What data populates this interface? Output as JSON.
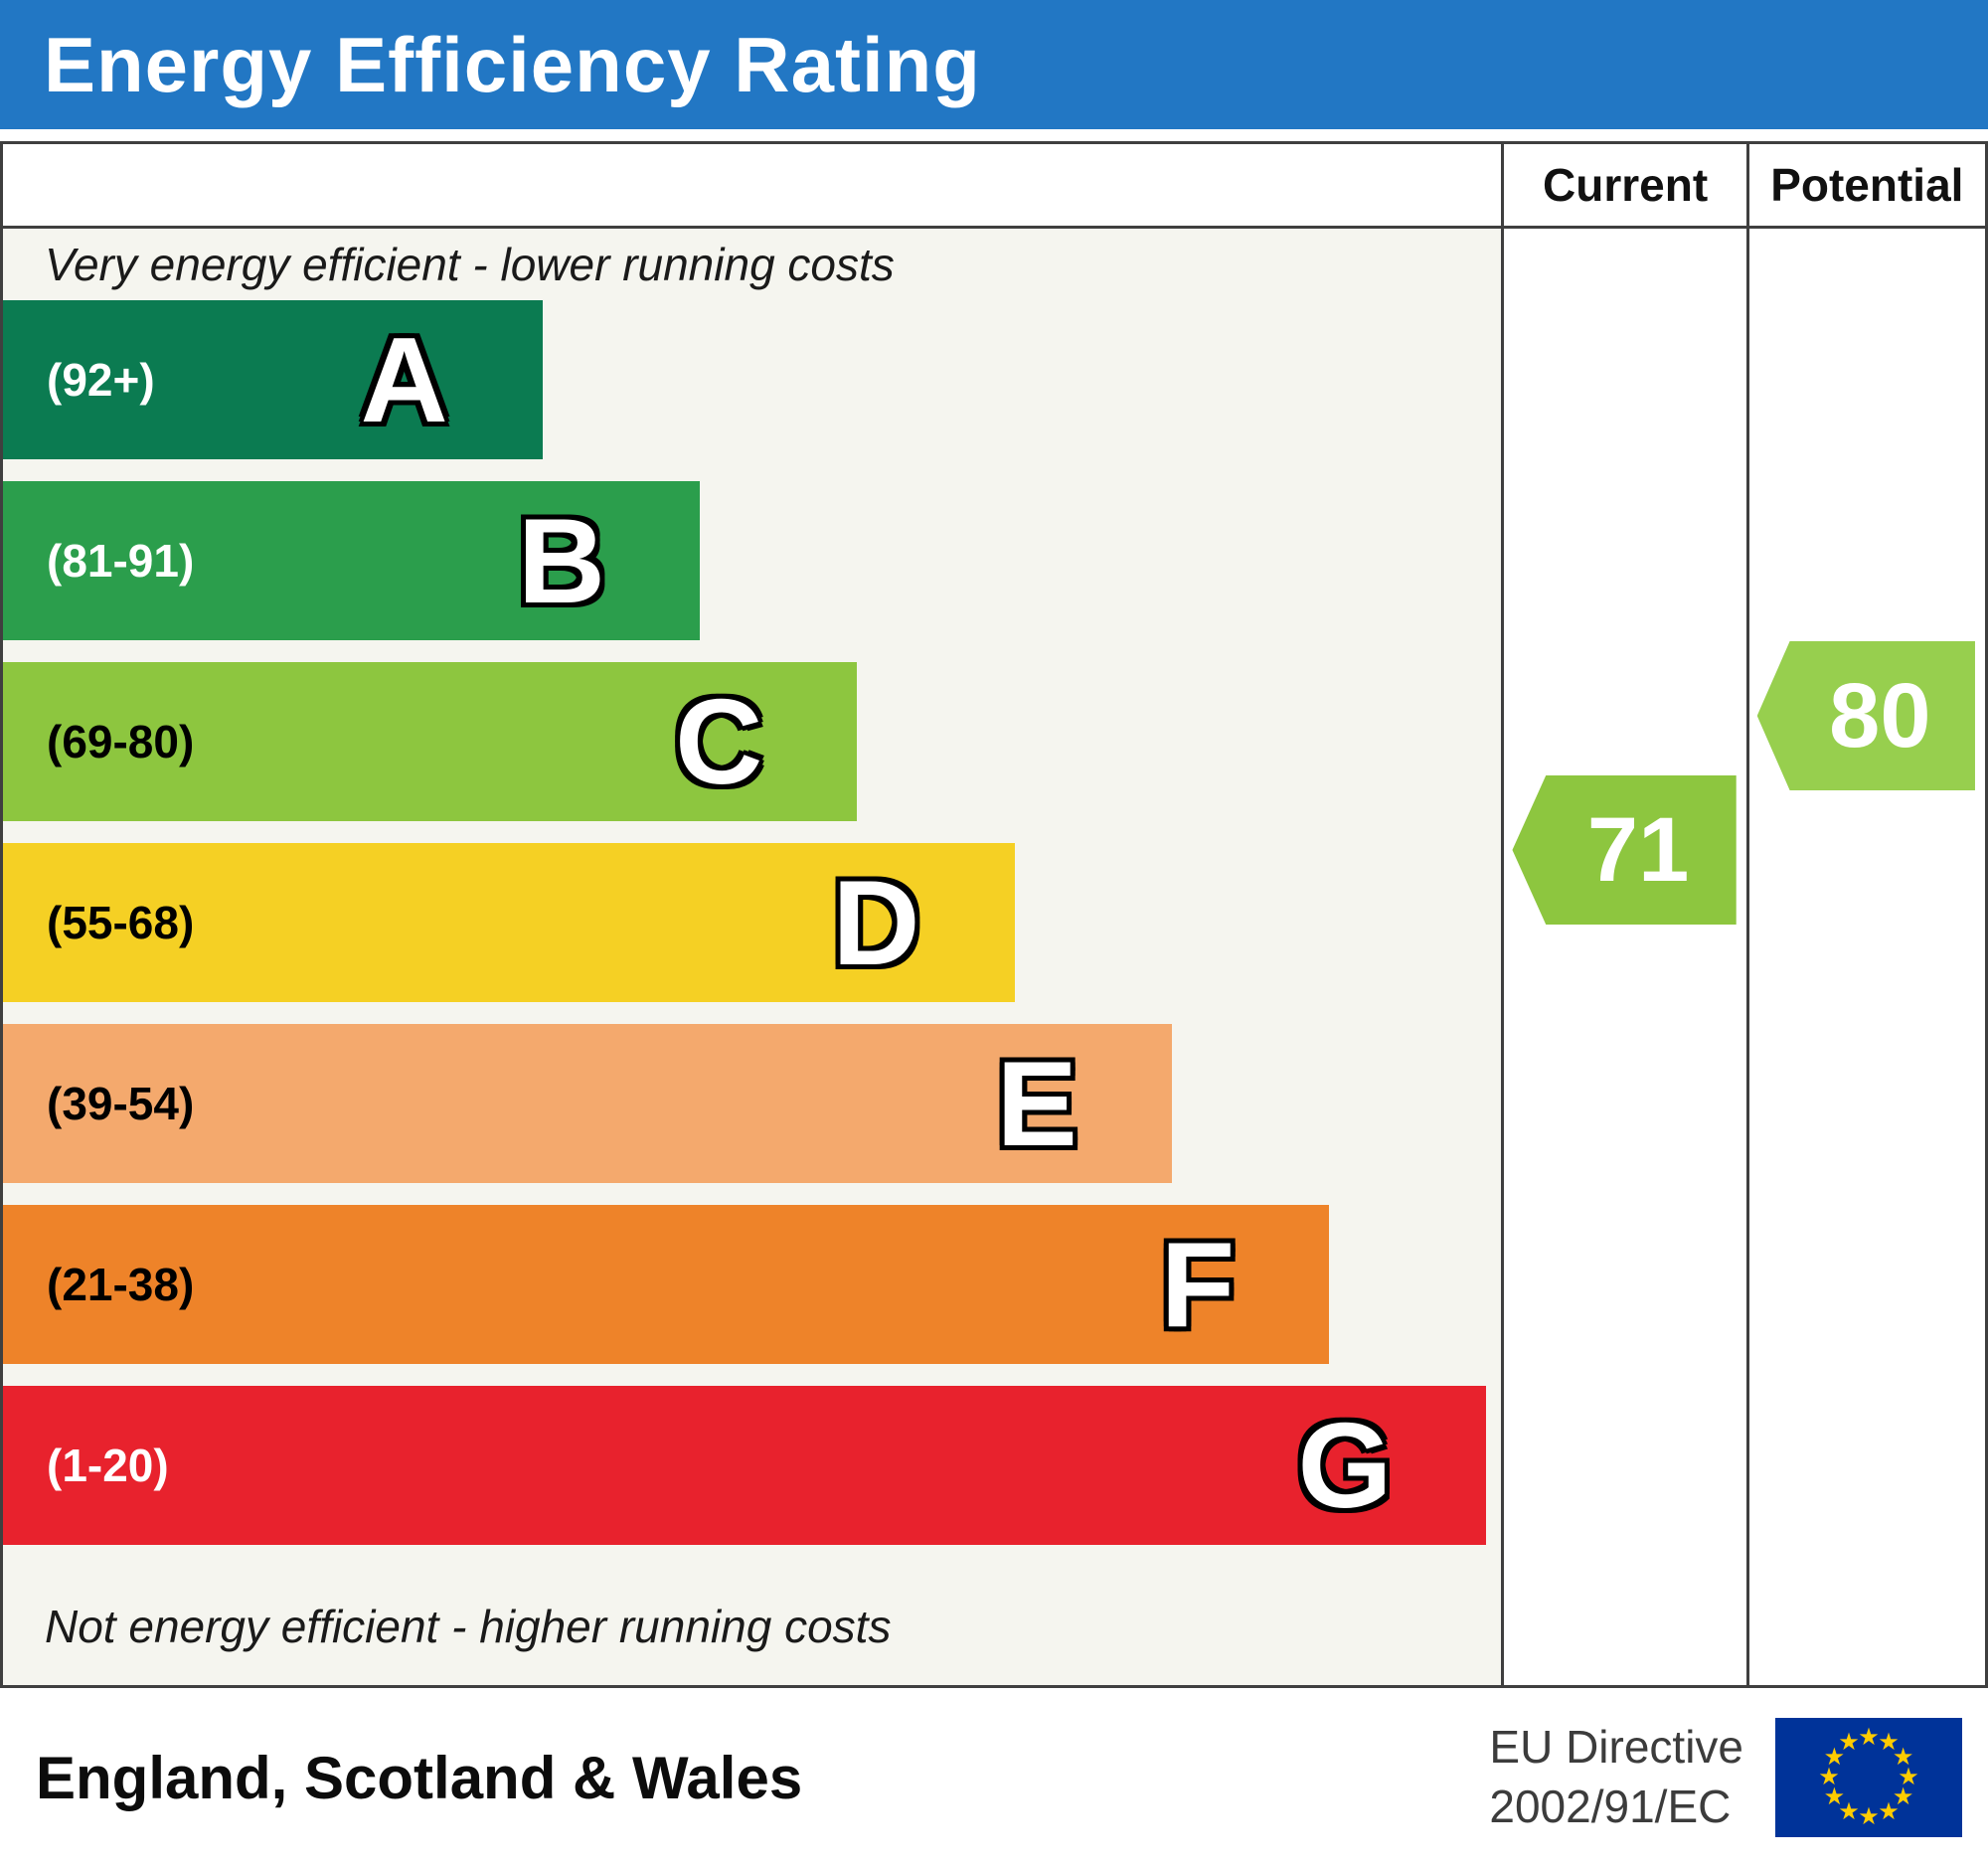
{
  "title": "Energy Efficiency Rating",
  "theme": {
    "banner_color": "#2277c4",
    "border_color": "#3f3f3f",
    "band_area_bg": "#f5f5ef"
  },
  "columns": {
    "current": "Current",
    "potential": "Potential"
  },
  "notes": {
    "top": "Very energy efficient - lower running costs",
    "bottom": "Not energy efficient - higher running costs"
  },
  "footer": {
    "region": "England, Scotland & Wales",
    "directive": [
      "EU Directive",
      "2002/91/EC"
    ],
    "flag_icon": "eu-flag",
    "flag_colors": {
      "field": "#003399",
      "stars": "#ffcc00"
    }
  },
  "chart_data": {
    "type": "bar",
    "title": "Energy Efficiency Rating",
    "bands": [
      {
        "letter": "A",
        "range": "(92+)",
        "min": 92,
        "max": 100,
        "color": "#0b7b51",
        "label_color": "#ffffff",
        "width_pct": 36
      },
      {
        "letter": "B",
        "range": "(81-91)",
        "min": 81,
        "max": 91,
        "color": "#2b9e4c",
        "label_color": "#ffffff",
        "width_pct": 46.5
      },
      {
        "letter": "C",
        "range": "(69-80)",
        "min": 69,
        "max": 80,
        "color": "#8dc63f",
        "label_color": "#000000",
        "width_pct": 57
      },
      {
        "letter": "D",
        "range": "(55-68)",
        "min": 55,
        "max": 68,
        "color": "#f5d024",
        "label_color": "#000000",
        "width_pct": 67.5
      },
      {
        "letter": "E",
        "range": "(39-54)",
        "min": 39,
        "max": 54,
        "color": "#f4a96d",
        "label_color": "#000000",
        "width_pct": 78
      },
      {
        "letter": "F",
        "range": "(21-38)",
        "min": 21,
        "max": 38,
        "color": "#ee8329",
        "label_color": "#000000",
        "width_pct": 88.5
      },
      {
        "letter": "G",
        "range": "(1-20)",
        "min": 1,
        "max": 20,
        "color": "#e8222d",
        "label_color": "#ffffff",
        "width_pct": 99
      }
    ],
    "current": {
      "column": "Current",
      "value": 71,
      "band": "C",
      "color": "#8dc63f"
    },
    "potential": {
      "column": "Potential",
      "value": 80,
      "band": "C",
      "color": "#97cf4e"
    }
  }
}
